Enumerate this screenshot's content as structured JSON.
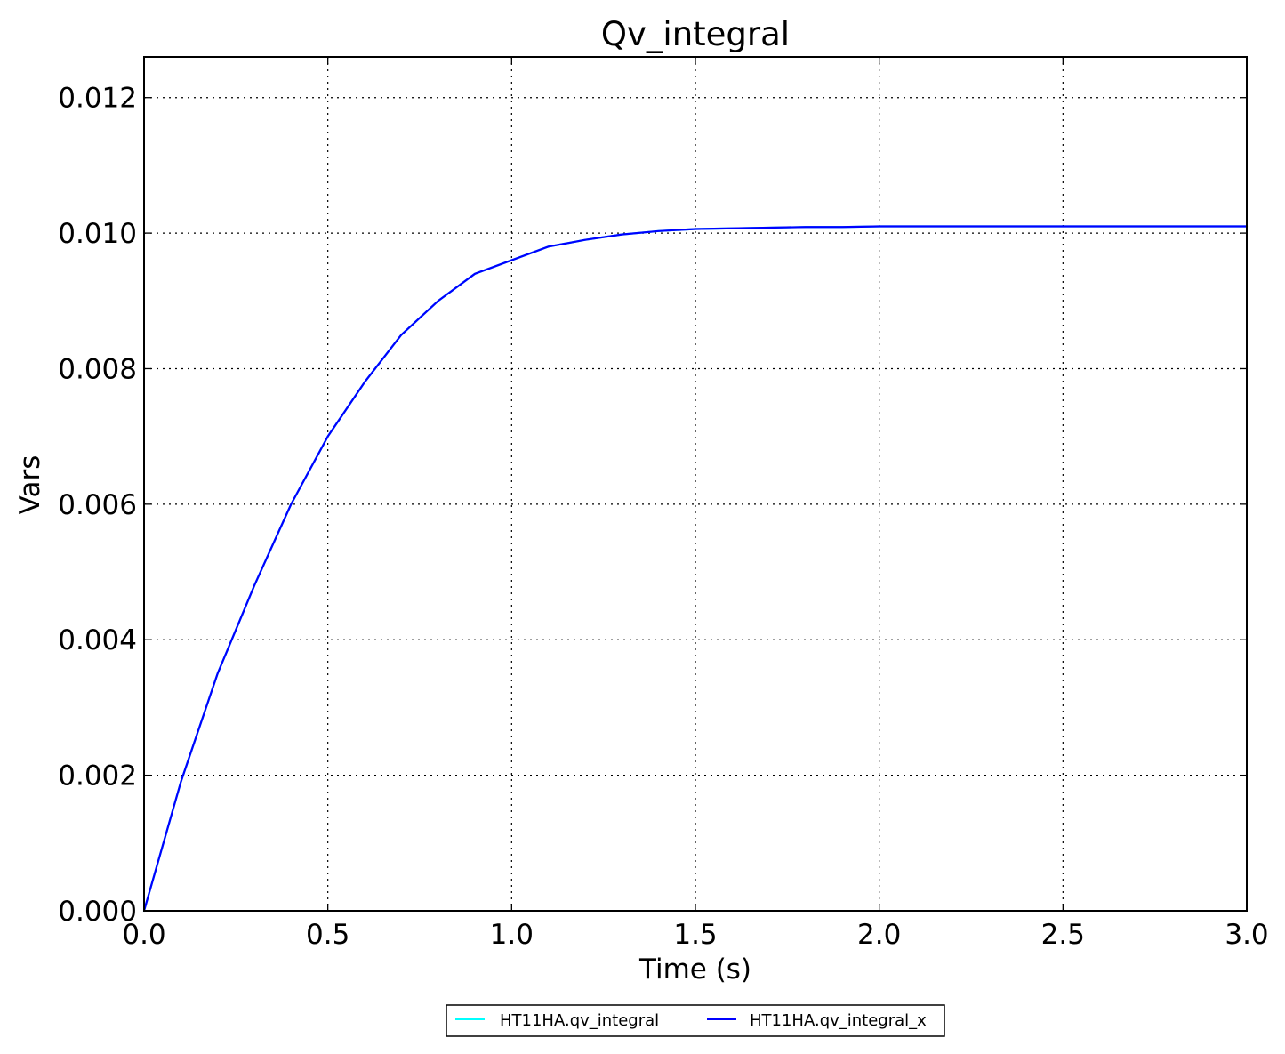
{
  "chart_data": {
    "type": "line",
    "title": "Qv_integral",
    "xlabel": "Time (s)",
    "ylabel": "Vars",
    "xlim": [
      0.0,
      3.0
    ],
    "ylim": [
      0.0,
      0.0126
    ],
    "grid": true,
    "legend_position": "bottom-center",
    "x_ticks": [
      0.0,
      0.5,
      1.0,
      1.5,
      2.0,
      2.5,
      3.0
    ],
    "x_tick_labels": [
      "0.0",
      "0.5",
      "1.0",
      "1.5",
      "2.0",
      "2.5",
      "3.0"
    ],
    "y_ticks": [
      0.0,
      0.002,
      0.004,
      0.006,
      0.008,
      0.01,
      0.012
    ],
    "y_tick_labels": [
      "0.000",
      "0.002",
      "0.004",
      "0.006",
      "0.008",
      "0.010",
      "0.012"
    ],
    "series": [
      {
        "name": "HT11HA.qv_integral",
        "color": "#00ffff",
        "x": [
          0.0,
          0.1,
          0.2,
          0.3,
          0.4,
          0.5,
          0.6,
          0.7,
          0.8,
          0.9,
          1.0,
          1.1,
          1.2,
          1.3,
          1.4,
          1.5,
          1.6,
          1.7,
          1.8,
          1.9,
          2.0,
          2.5,
          3.0
        ],
        "y": [
          0.0,
          0.0019,
          0.0035,
          0.0048,
          0.006,
          0.007,
          0.0078,
          0.0085,
          0.009,
          0.0094,
          0.0096,
          0.0098,
          0.0099,
          0.00998,
          0.01003,
          0.01006,
          0.01007,
          0.01008,
          0.01009,
          0.01009,
          0.0101,
          0.0101,
          0.0101
        ]
      },
      {
        "name": "HT11HA.qv_integral_x",
        "color": "#0000ff",
        "x": [
          0.0,
          0.1,
          0.2,
          0.3,
          0.4,
          0.5,
          0.6,
          0.7,
          0.8,
          0.9,
          1.0,
          1.1,
          1.2,
          1.3,
          1.4,
          1.5,
          1.6,
          1.7,
          1.8,
          1.9,
          2.0,
          2.5,
          3.0
        ],
        "y": [
          0.0,
          0.0019,
          0.0035,
          0.0048,
          0.006,
          0.007,
          0.0078,
          0.0085,
          0.009,
          0.0094,
          0.0096,
          0.0098,
          0.0099,
          0.00998,
          0.01003,
          0.01006,
          0.01007,
          0.01008,
          0.01009,
          0.01009,
          0.0101,
          0.0101,
          0.0101
        ]
      }
    ]
  }
}
